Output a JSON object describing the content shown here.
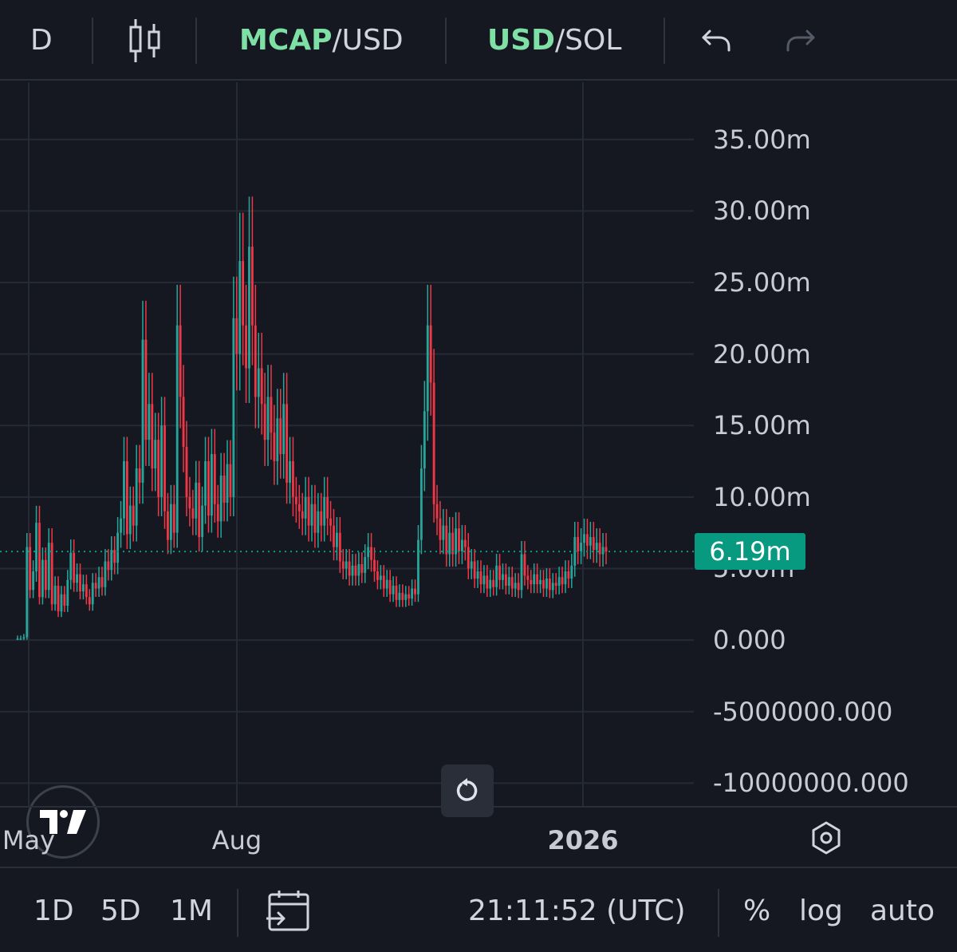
{
  "toolbar": {
    "interval": "D",
    "chart_type_icon": "candlestick-icon",
    "mcap_prefix": "MCAP",
    "mcap_suffix": "/USD",
    "usd_prefix": "USD",
    "usd_suffix": "/SOL",
    "undo_icon": "undo-icon",
    "redo_icon": "redo-icon"
  },
  "colors": {
    "background": "#151821",
    "up": "#26a69a",
    "down": "#f23645",
    "price_line": "#089981",
    "accent_text": "#7fe0a6",
    "grid": "#262a35"
  },
  "price_label": "6.19m",
  "time_axis": {
    "labels": [
      "May",
      "Aug",
      "2026"
    ]
  },
  "bottom_bar": {
    "ranges": [
      "1D",
      "5D",
      "1M"
    ],
    "calendar_icon": "goto-date-icon",
    "clock": "21:11:52 (UTC)",
    "percent": "%",
    "log": "log",
    "auto": "auto"
  },
  "chart_data": {
    "type": "candlestick",
    "y_tick_labels": [
      "35.00m",
      "30.00m",
      "25.00m",
      "20.00m",
      "15.00m",
      "10.00m",
      "5.00m",
      "0.000",
      "-5000000.000",
      "-10000000.000"
    ],
    "y_ticks": [
      35000000,
      30000000,
      25000000,
      20000000,
      15000000,
      10000000,
      5000000,
      0,
      -5000000,
      -10000000
    ],
    "ylim": [
      -11600000,
      39000000
    ],
    "x_labels": [
      "May",
      "Aug",
      "2026"
    ],
    "last_price": 6190000,
    "grid": true,
    "close_series": [
      0.1,
      0.1,
      0.2,
      6.5,
      3.5,
      4.8,
      8.2,
      3.0,
      5.6,
      3.5,
      6.8,
      2.5,
      3.8,
      2.0,
      3.2,
      2.4,
      4.2,
      6.1,
      4.0,
      4.6,
      3.4,
      3.9,
      3.0,
      2.5,
      4.0,
      3.6,
      4.4,
      3.7,
      5.5,
      4.9,
      6.3,
      5.4,
      7.5,
      8.5,
      12.5,
      7.4,
      9.4,
      8.0,
      12.0,
      11.0,
      21.0,
      14.0,
      16.5,
      12.0,
      14.0,
      10.0,
      15.0,
      9.0,
      7.0,
      9.5,
      7.5,
      22.0,
      17.0,
      13.5,
      10.0,
      9.2,
      8.5,
      11.0,
      7.2,
      9.4,
      12.5,
      8.7,
      13.0,
      9.5,
      8.3,
      11.5,
      9.6,
      12.3,
      10.0,
      22.5,
      20.0,
      26.5,
      22.0,
      19.0,
      27.5,
      22.0,
      17.0,
      19.0,
      16.5,
      14.0,
      17.0,
      14.5,
      12.5,
      15.5,
      13.0,
      16.5,
      11.0,
      12.5,
      10.0,
      9.5,
      9.0,
      8.5,
      10.0,
      8.0,
      9.5,
      7.5,
      9.0,
      8.0,
      10.0,
      8.5,
      8.0,
      6.5,
      7.5,
      5.5,
      5.0,
      5.5,
      4.5,
      5.2,
      4.5,
      5.3,
      4.7,
      5.8,
      6.5,
      5.6,
      4.8,
      4.2,
      4.5,
      3.6,
      4.2,
      3.2,
      3.8,
      2.8,
      3.3,
      2.8,
      3.2,
      2.9,
      3.6,
      3.2,
      7.0,
      12.0,
      16.0,
      22.0,
      18.0,
      9.5,
      8.5,
      7.0,
      8.0,
      6.0,
      7.5,
      6.0,
      7.8,
      6.2,
      7.0,
      6.5,
      5.0,
      5.5,
      4.3,
      4.8,
      3.9,
      4.5,
      3.6,
      4.2,
      3.7,
      5.2,
      4.2,
      4.6,
      3.8,
      4.4,
      3.6,
      4.0,
      3.5,
      6.0,
      4.5,
      4.2,
      3.9,
      4.6,
      3.9,
      4.2,
      3.6,
      4.3,
      3.5,
      4.0,
      3.8,
      4.4,
      3.9,
      4.8,
      4.3,
      5.2,
      7.2,
      6.2,
      6.8,
      7.4,
      6.6,
      7.2,
      6.3,
      6.8,
      6.0,
      6.5,
      6.19
    ]
  }
}
